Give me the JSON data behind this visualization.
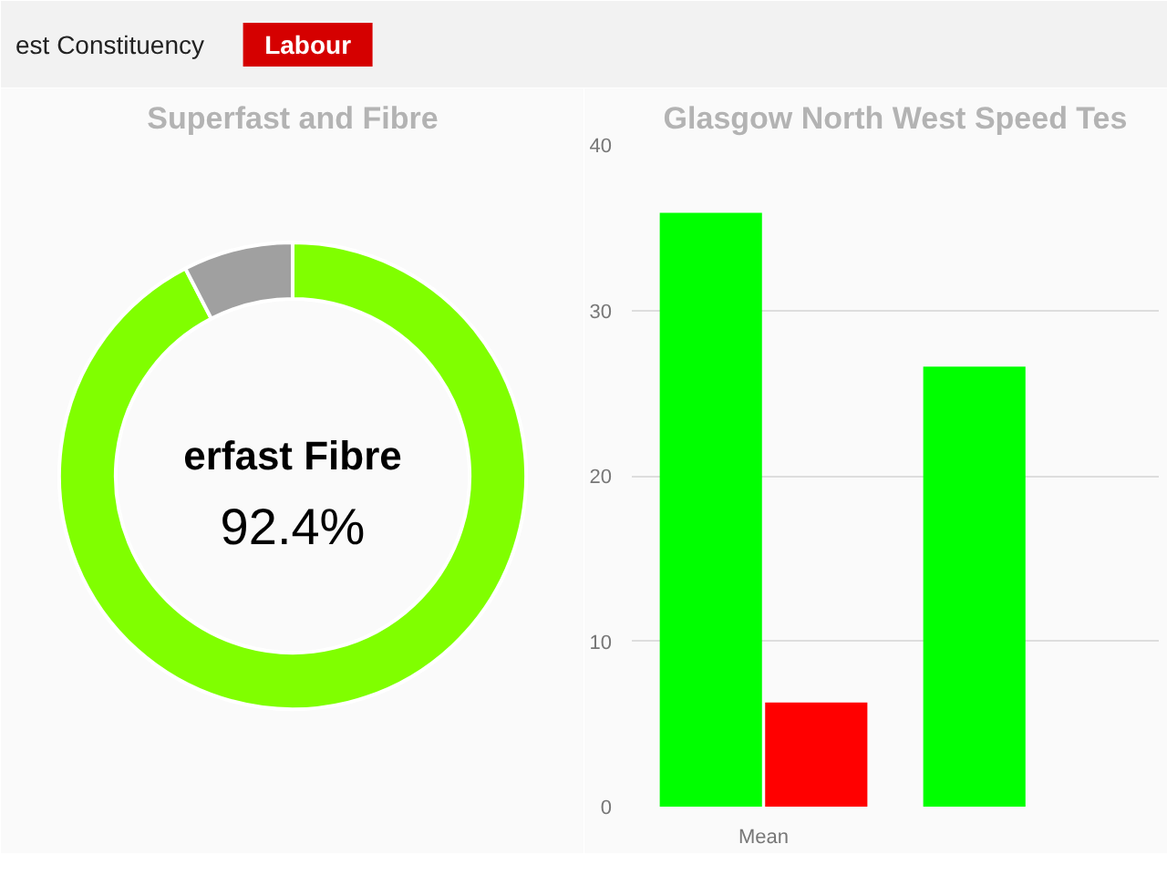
{
  "chart_data": [
    {
      "type": "other",
      "title": "est Constituency",
      "annotations": [
        "Labour"
      ]
    },
    {
      "type": "donut",
      "title": "Superfast and Fibre",
      "categories": [
        "erfast Fibre",
        null
      ],
      "values": [
        92.4,
        7.6
      ],
      "colors": [
        "#80ff00",
        "#a0a0a0"
      ],
      "value_labels": [
        "92.4%",
        null
      ]
    },
    {
      "type": "bar",
      "title": "Glasgow North West Speed Tes",
      "categories": [
        "Mean",
        null
      ],
      "ylim": [
        0,
        40
      ],
      "yticks": [
        0,
        10,
        20,
        30,
        40
      ],
      "grid": "y",
      "series": [
        {
          "color": "#00ff00",
          "values": [
            35.9,
            26.6
          ]
        },
        {
          "color": "#ff0000",
          "values": [
            6.3,
            null
          ]
        }
      ]
    }
  ]
}
